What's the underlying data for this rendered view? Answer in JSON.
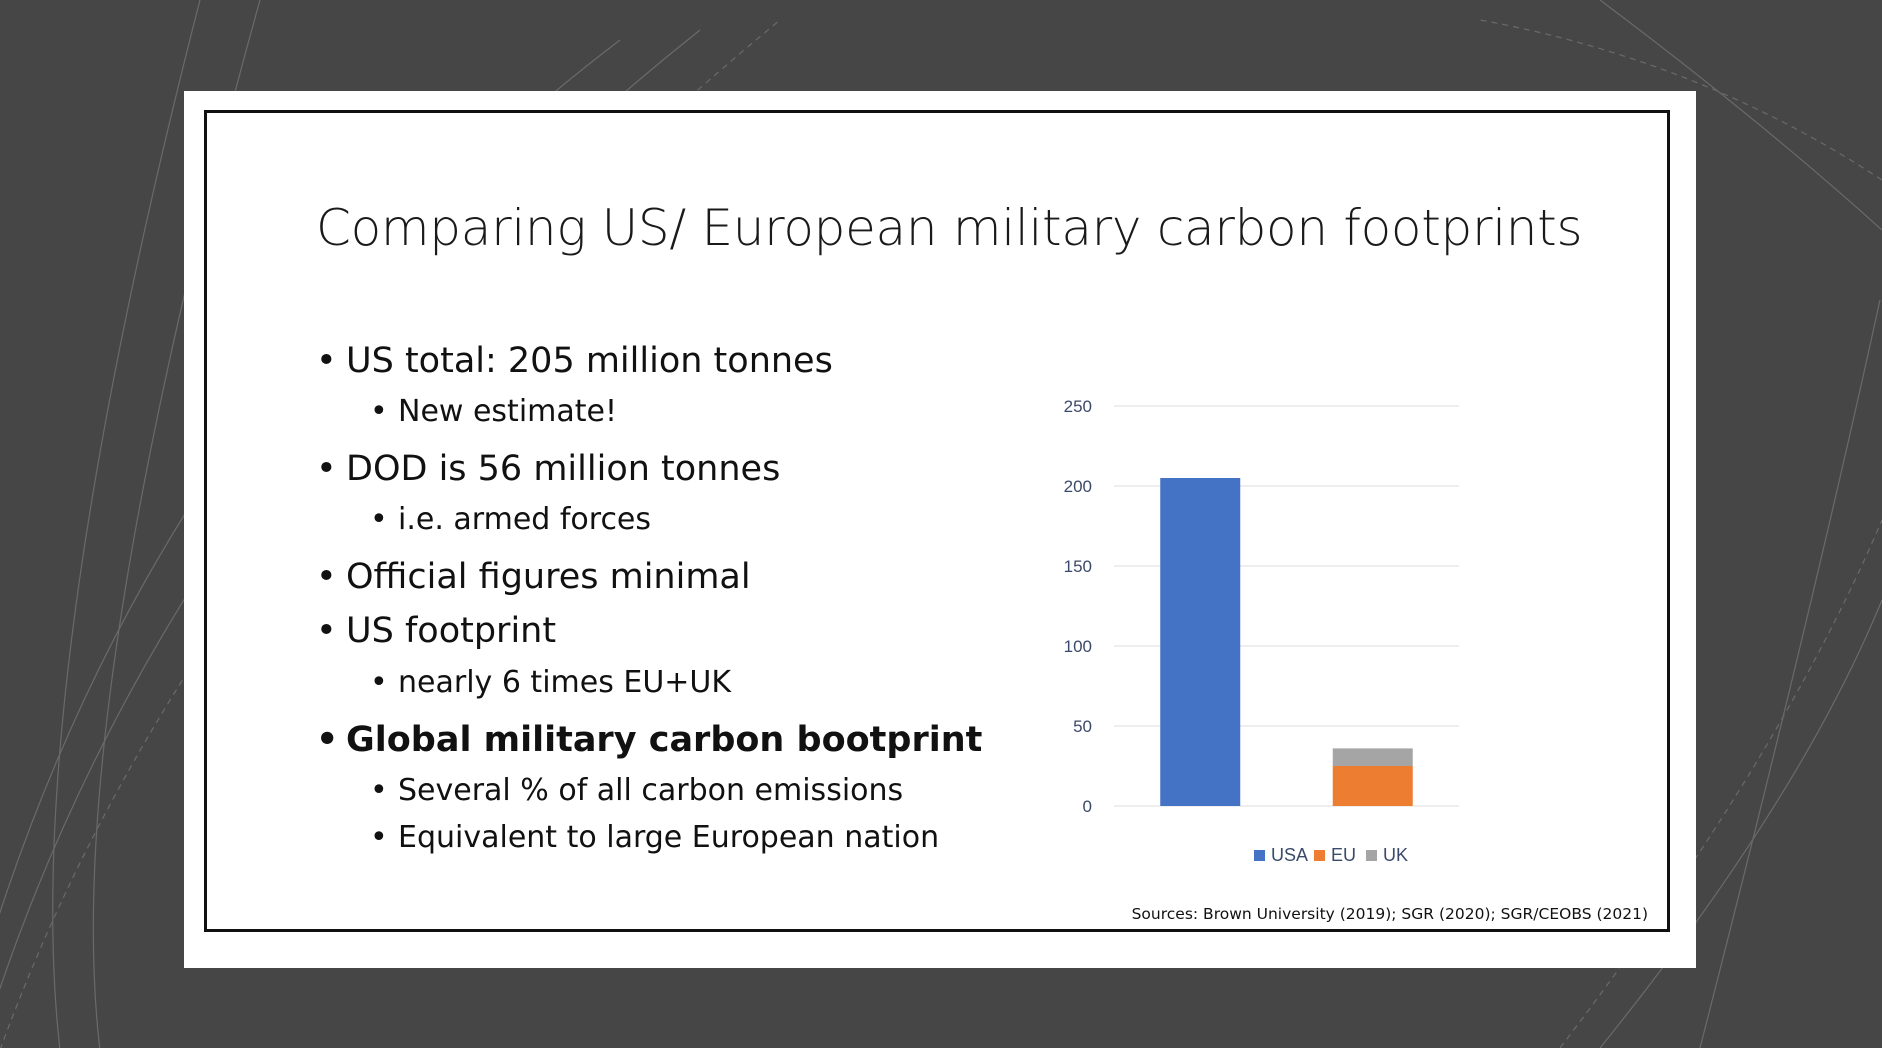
{
  "slide": {
    "title": "Comparing US/ European military carbon footprints",
    "bullets": [
      {
        "level": 1,
        "text": "US total: 205 million tonnes",
        "bold": false
      },
      {
        "level": 2,
        "text": "New estimate!",
        "bold": false
      },
      {
        "level": 1,
        "text": "DOD is 56 million tonnes",
        "bold": false
      },
      {
        "level": 2,
        "text": "i.e. armed forces",
        "bold": false
      },
      {
        "level": 1,
        "text": "Official figures minimal",
        "bold": false
      },
      {
        "level": 1,
        "text": "US footprint",
        "bold": false
      },
      {
        "level": 2,
        "text": "nearly 6 times EU+UK",
        "bold": false
      },
      {
        "level": 1,
        "text": "Global military carbon bootprint",
        "bold": true
      },
      {
        "level": 2,
        "text": "Several % of all carbon emissions",
        "bold": false
      },
      {
        "level": 2,
        "text": "Equivalent to large European nation",
        "bold": false
      }
    ],
    "bullet_glyph": "•",
    "sources": "Sources: Brown University (2019); SGR (2020); SGR/CEOBS (2021)"
  },
  "chart_data": {
    "type": "bar",
    "stacked": true,
    "categories": [
      "USA",
      "EU+UK"
    ],
    "category_labels_shown": false,
    "series": [
      {
        "name": "USA",
        "values": [
          205,
          0
        ],
        "color": "#4472C4"
      },
      {
        "name": "EU",
        "values": [
          0,
          25
        ],
        "color": "#ED7D31"
      },
      {
        "name": "UK",
        "values": [
          0,
          11
        ],
        "color": "#A5A5A5"
      }
    ],
    "y_ticks": [
      "0",
      "50",
      "100",
      "150",
      "200",
      "250"
    ],
    "ylim": [
      0,
      250
    ],
    "grid": true,
    "legend_position": "bottom",
    "title": "",
    "xlabel": "",
    "ylabel": ""
  },
  "colors": {
    "background": "#464646",
    "slide": "#ffffff",
    "frame": "#111111",
    "gridline": "#e3e3e3",
    "tick_text": "#3a4a6a"
  }
}
